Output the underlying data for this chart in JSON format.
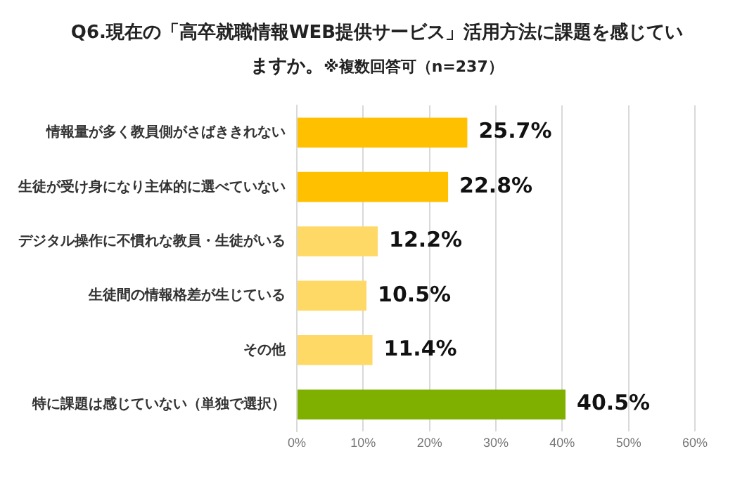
{
  "chart_data": {
    "type": "bar",
    "orientation": "horizontal",
    "title": "Q6.現在の「高卒就職情報WEB提供サービス」活用方法に課題を感じていますか。",
    "subtitle": "※複数回答可（n=237）",
    "categories": [
      "情報量が多く教員側がさばききれない",
      "生徒が受け身になり主体的に選べていない",
      "デジタル操作に不慣れな教員・生徒がいる",
      "生徒間の情報格差が生じている",
      "その他",
      "特に課題は感じていない（単独で選択）"
    ],
    "values": [
      25.7,
      22.8,
      12.2,
      10.5,
      11.4,
      40.5
    ],
    "colors": [
      "#ffc000",
      "#ffc000",
      "#ffd966",
      "#ffd966",
      "#ffd966",
      "#7fb000"
    ],
    "value_labels": [
      "25.7%",
      "22.8%",
      "12.2%",
      "10.5%",
      "11.4%",
      "40.5%"
    ],
    "xlim": [
      0,
      60
    ],
    "xticks": [
      {
        "value": 0,
        "label": "0%"
      },
      {
        "value": 10,
        "label": "10%"
      },
      {
        "value": 20,
        "label": "20%"
      },
      {
        "value": 30,
        "label": "30%"
      },
      {
        "value": 40,
        "label": "40%"
      },
      {
        "value": 50,
        "label": "50%"
      },
      {
        "value": 60,
        "label": "60%"
      }
    ],
    "grid": "x",
    "legend": false
  }
}
